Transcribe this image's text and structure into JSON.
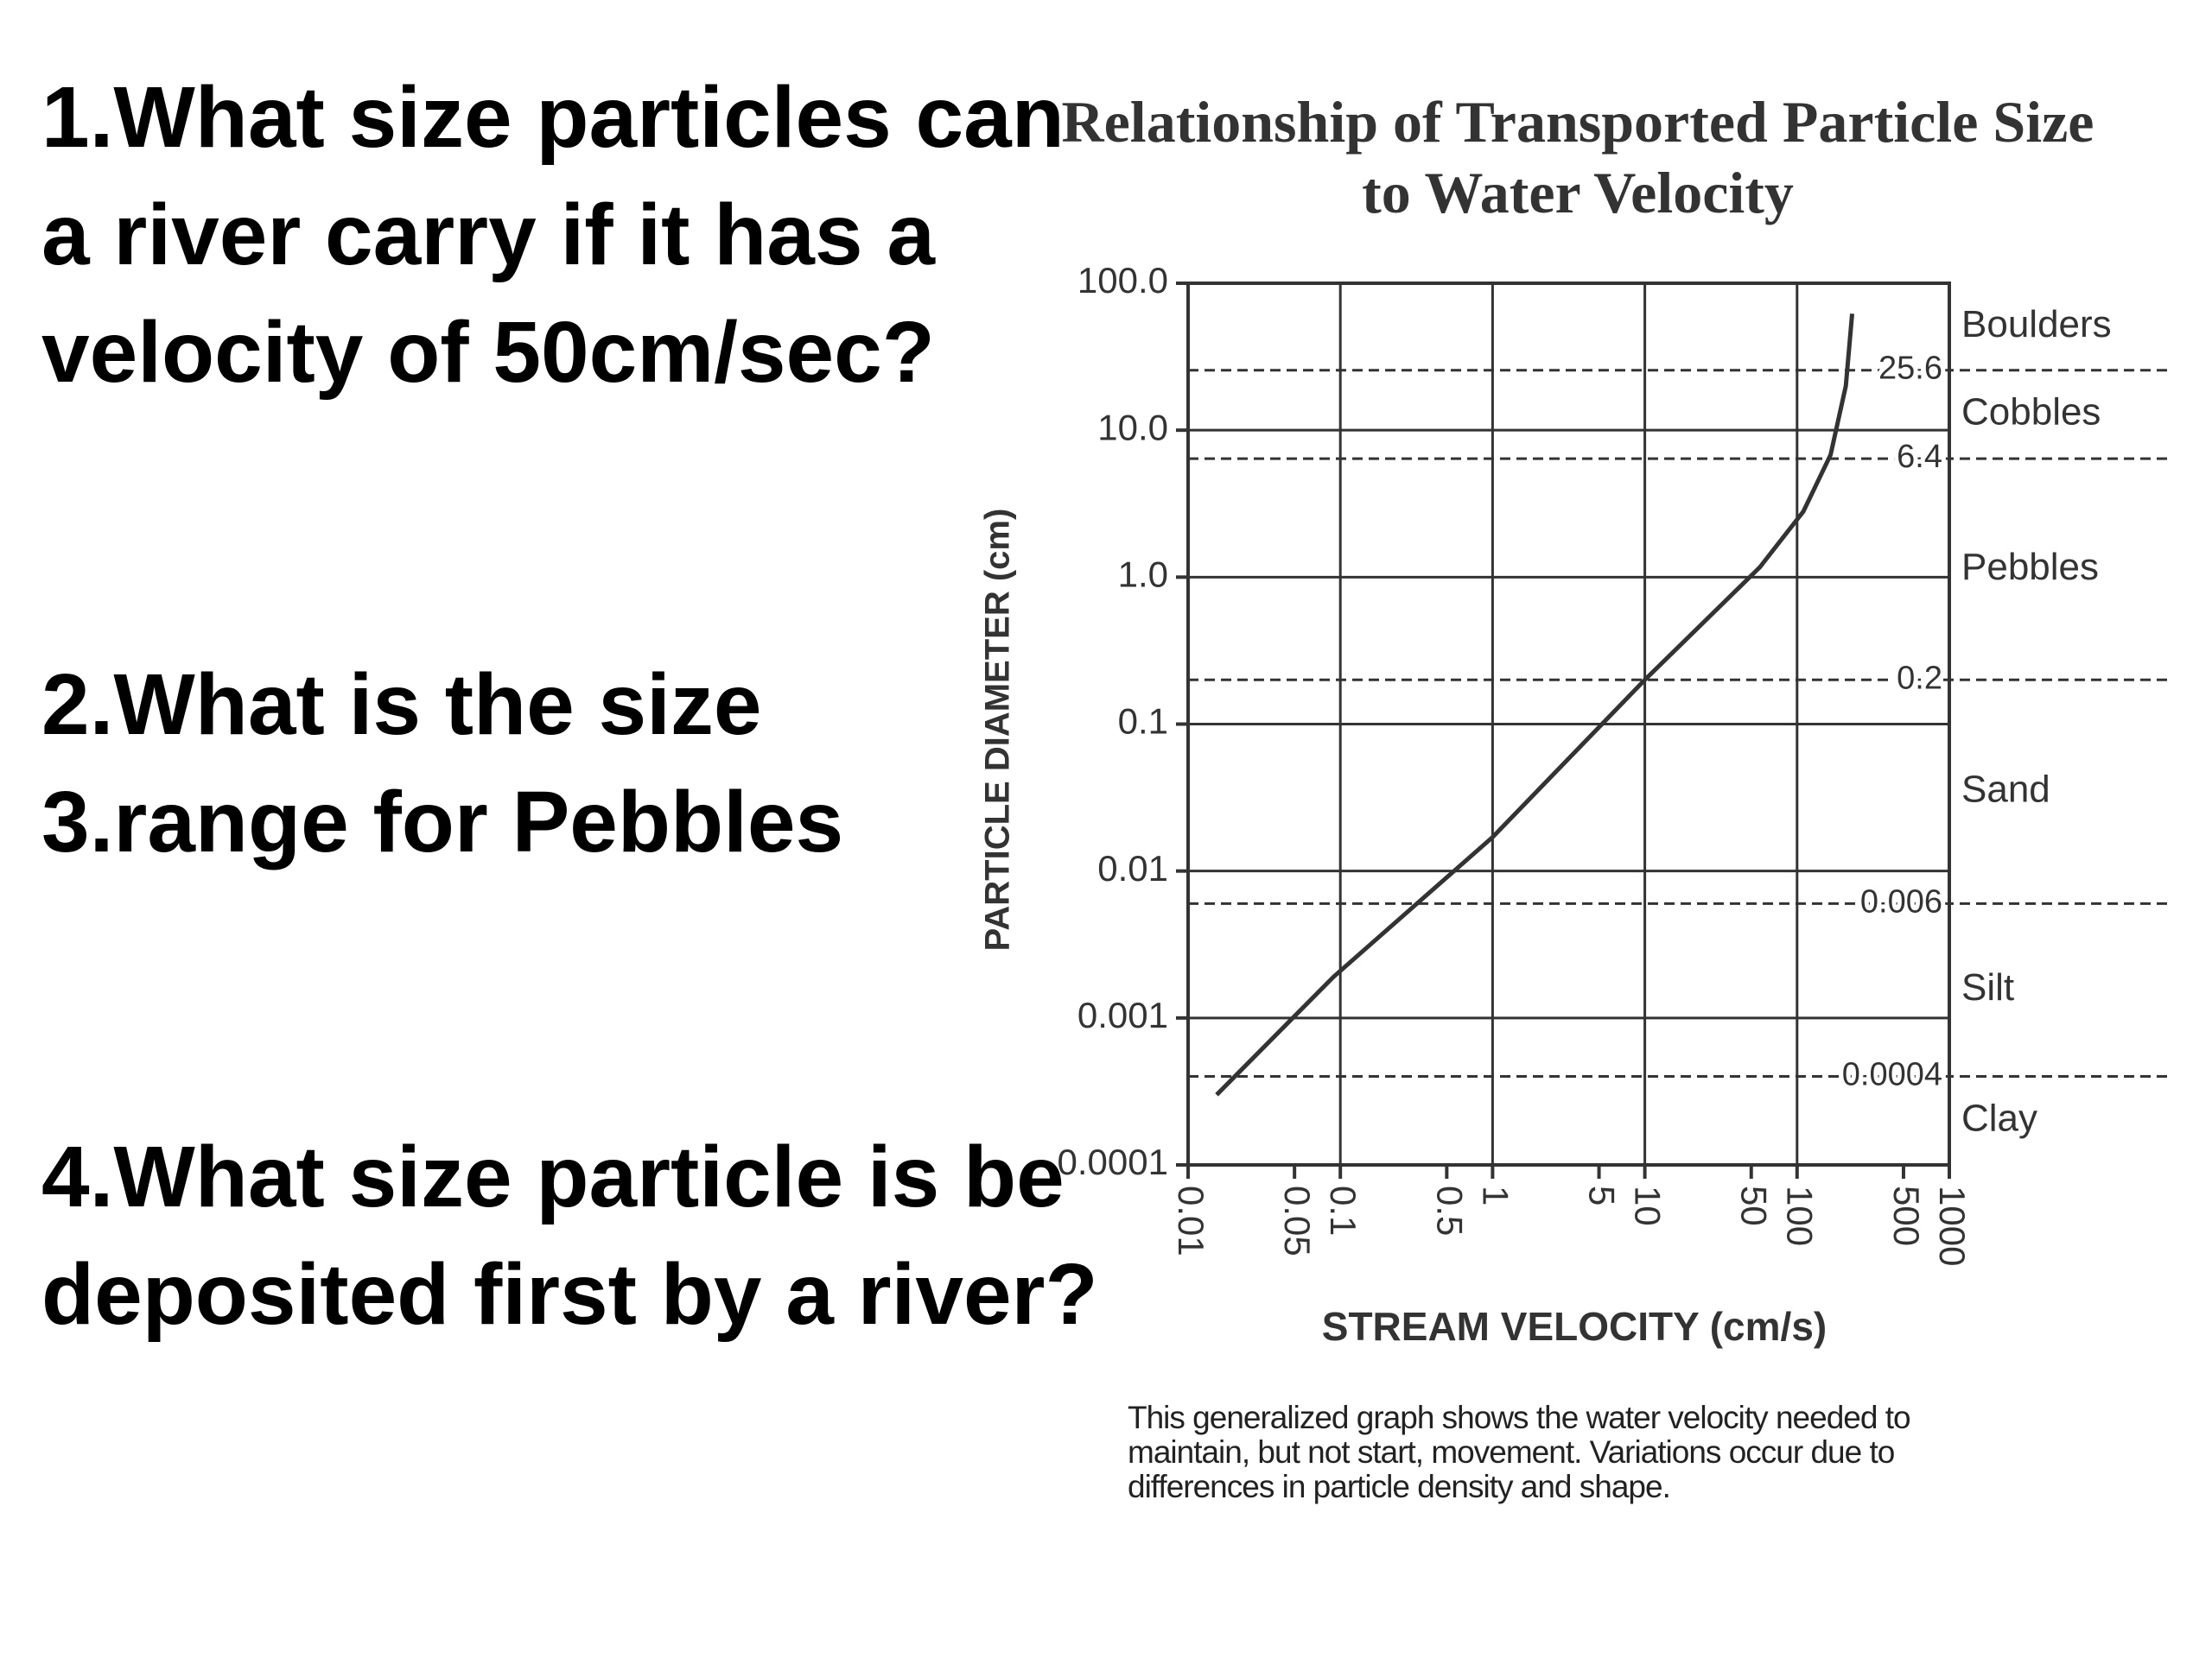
{
  "questions": [
    "1.What size particles can a river carry if it has a velocity of 50cm/sec?",
    "2.What is the size",
    "3.range for Pebbles",
    "4.What size particle is be deposited first by a river?"
  ],
  "chart_data": {
    "type": "line",
    "title": "Relationship of Transported Particle Size to Water Velocity",
    "x_label": "STREAM VELOCITY (cm/s)",
    "y_label": "PARTICLE DIAMETER (cm)",
    "xscale": "log",
    "yscale": "log",
    "xlim": [
      0.01,
      1000
    ],
    "ylim": [
      0.0001,
      100
    ],
    "xticks": [
      0.01,
      0.05,
      0.1,
      0.5,
      1,
      5,
      10,
      50,
      100,
      500,
      1000
    ],
    "yticks": [
      {
        "value": 100,
        "label": "100.0"
      },
      {
        "value": 10,
        "label": "10.0"
      },
      {
        "value": 1,
        "label": "1.0"
      },
      0.1,
      0.01,
      0.001,
      0.0001
    ],
    "grid": true,
    "x": [
      0.0154,
      0.09,
      1,
      10,
      57,
      110,
      166,
      209,
      230
    ],
    "series": [
      {
        "color": "#333333",
        "values": [
          0.0003,
          0.0019,
          0.017,
          0.2,
          1.17,
          2.8,
          6.8,
          20,
          62
        ]
      }
    ],
    "size_classes": [
      "Boulders",
      "Cobbles",
      "Pebbles",
      "Sand",
      "Silt",
      "Clay"
    ],
    "class_boundaries": [
      25.6,
      6.4,
      0.2,
      0.006,
      0.0004
    ],
    "note": "This generalized graph shows the water velocity needed to maintain, but not start, movement. Variations occur due to differences in particle density and shape."
  }
}
